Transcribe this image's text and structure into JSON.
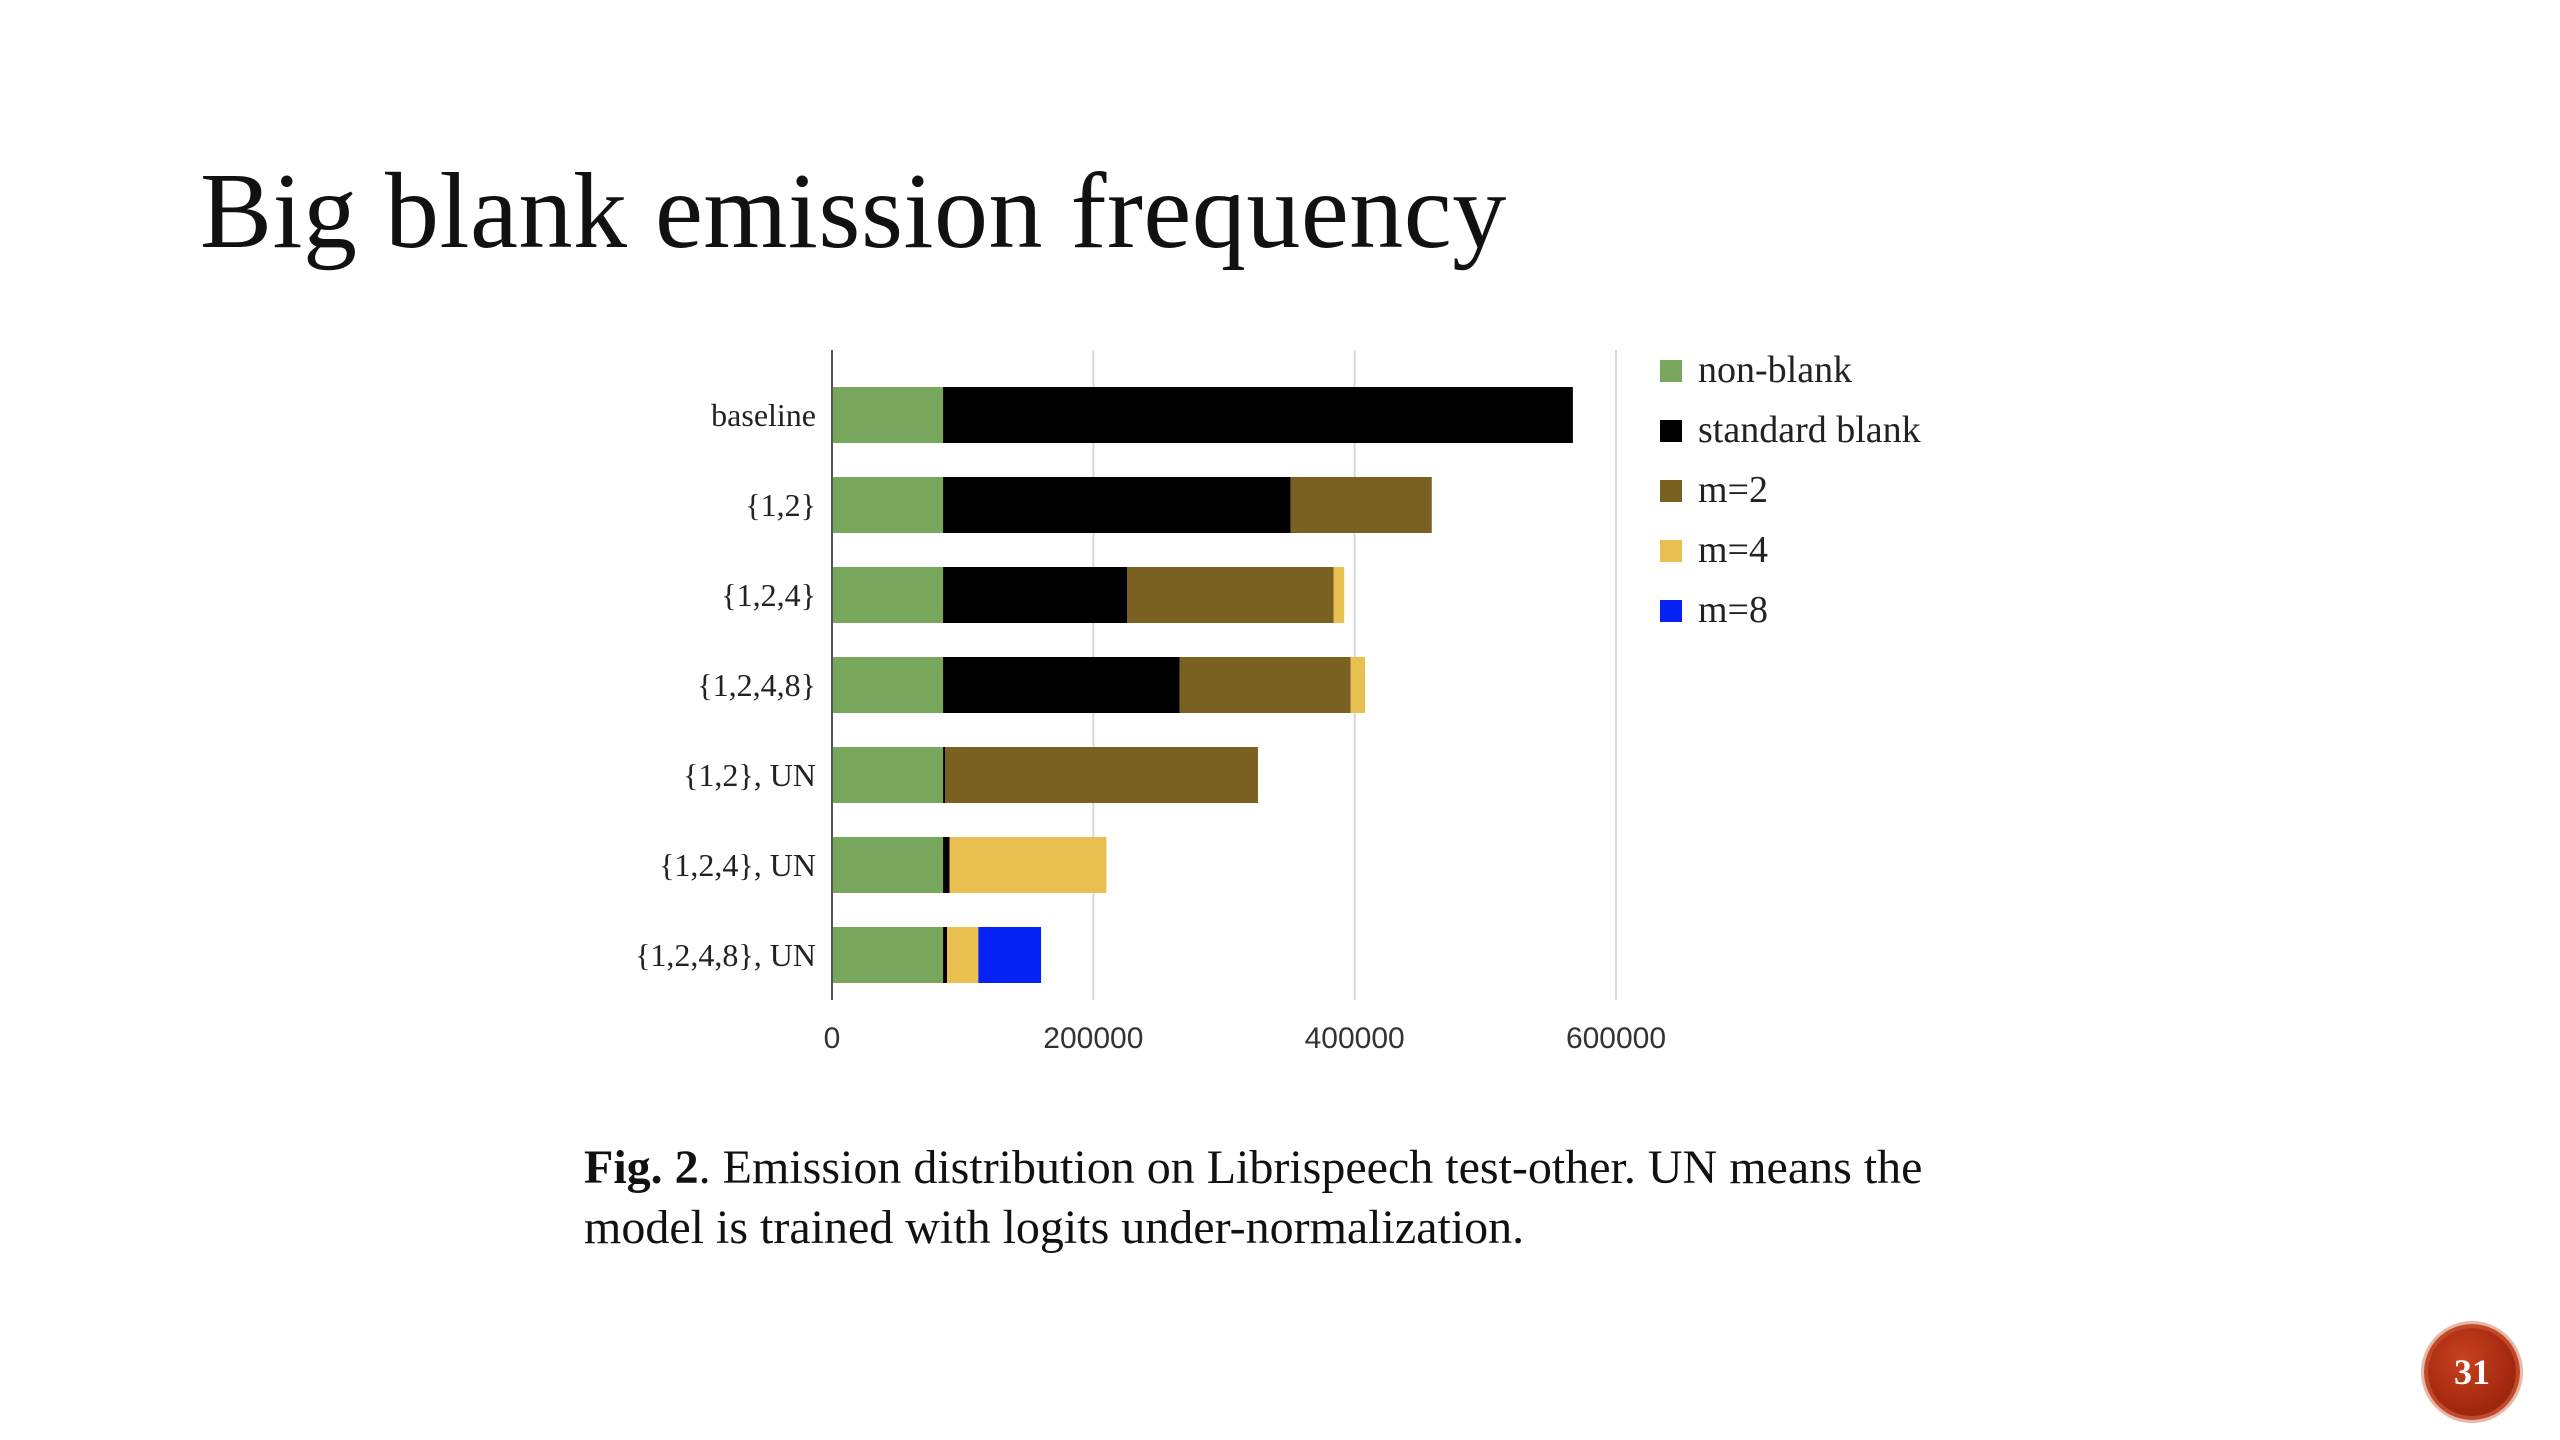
{
  "slide": {
    "title": "Big blank emission frequency",
    "page_number": "31"
  },
  "caption": {
    "label": "Fig. 2",
    "text": ".  Emission distribution on Librispeech test-other.  UN means the model is trained with logits under-normalization."
  },
  "chart_data": {
    "type": "bar",
    "orientation": "horizontal",
    "stacked": true,
    "categories": [
      "baseline",
      "{1,2}",
      "{1,2,4}",
      "{1,2,4,8}",
      "{1,2}, UN",
      "{1,2,4}, UN",
      "{1,2,4,8}, UN"
    ],
    "series": [
      {
        "name": "non-blank",
        "color": "#78a65d",
        "values": [
          85000,
          85000,
          85000,
          85000,
          85000,
          85000,
          85000
        ]
      },
      {
        "name": "standard blank",
        "color": "#000000",
        "values": [
          482000,
          266000,
          141000,
          181000,
          1500,
          5000,
          3000
        ]
      },
      {
        "name": "m=2",
        "color": "#7b6121",
        "values": [
          0,
          108000,
          158000,
          131000,
          239500,
          0,
          0
        ]
      },
      {
        "name": "m=4",
        "color": "#e9c04f",
        "values": [
          0,
          0,
          8000,
          11000,
          0,
          120000,
          24000
        ]
      },
      {
        "name": "m=8",
        "color": "#0622f5",
        "values": [
          0,
          0,
          0,
          0,
          0,
          0,
          48000
        ]
      }
    ],
    "xlim": [
      0,
      600000
    ],
    "xticks": [
      "0",
      "200000",
      "400000",
      "600000"
    ],
    "xtick_values": [
      0,
      200000,
      400000,
      600000
    ],
    "xlabel": "",
    "ylabel": "",
    "grid": true,
    "legend_position": "right"
  }
}
